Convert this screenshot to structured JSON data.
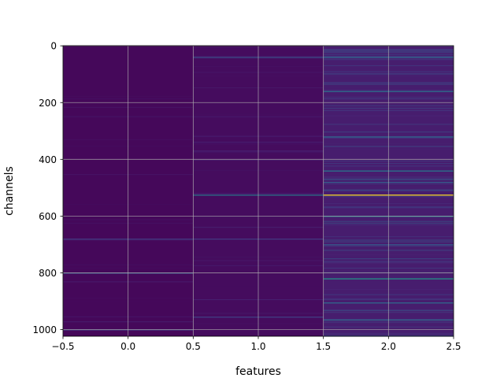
{
  "chart_data": {
    "type": "heatmap",
    "title": "",
    "xlabel": "features",
    "ylabel": "channels",
    "columns": [
      0,
      1,
      2
    ],
    "rows": 1024,
    "xlim": [
      -0.5,
      2.5
    ],
    "ylim": [
      1023.5,
      -0.5
    ],
    "y_inverted": true,
    "grid": true,
    "colormap": "viridis",
    "colormap_stops": [
      "#440154",
      "#482878",
      "#3e4989",
      "#31688e",
      "#26828e",
      "#1f9e89",
      "#35b779",
      "#6ece58",
      "#b5de2b",
      "#fde725"
    ],
    "x_ticks": [
      -0.5,
      0.0,
      0.5,
      1.0,
      1.5,
      2.0,
      2.5
    ],
    "x_tick_labels": [
      "−0.5",
      "0.0",
      "0.5",
      "1.0",
      "1.5",
      "2.0",
      "2.5"
    ],
    "y_ticks": [
      0,
      200,
      400,
      600,
      800,
      1000
    ],
    "y_tick_labels": [
      "0",
      "200",
      "400",
      "600",
      "800",
      "1000"
    ],
    "base_intensity": [
      0.02,
      0.03,
      0.08
    ],
    "highlights": [
      {
        "column": 0,
        "row": 800,
        "value": 0.28
      },
      {
        "column": 0,
        "row": 680,
        "value": 0.18
      },
      {
        "column": 0,
        "row": 1000,
        "value": 0.2
      },
      {
        "column": 1,
        "row": 40,
        "value": 0.25
      },
      {
        "column": 1,
        "row": 525,
        "value": 0.42
      },
      {
        "column": 1,
        "row": 680,
        "value": 0.18
      },
      {
        "column": 1,
        "row": 955,
        "value": 0.2
      },
      {
        "column": 2,
        "row": 40,
        "value": 0.35
      },
      {
        "column": 2,
        "row": 160,
        "value": 0.38
      },
      {
        "column": 2,
        "row": 320,
        "value": 0.35
      },
      {
        "column": 2,
        "row": 440,
        "value": 0.42
      },
      {
        "column": 2,
        "row": 480,
        "value": 0.3
      },
      {
        "column": 2,
        "row": 525,
        "value": 1.0
      },
      {
        "column": 2,
        "row": 600,
        "value": 0.45
      },
      {
        "column": 2,
        "row": 700,
        "value": 0.3
      },
      {
        "column": 2,
        "row": 820,
        "value": 0.55
      },
      {
        "column": 2,
        "row": 905,
        "value": 0.35
      },
      {
        "column": 2,
        "row": 965,
        "value": 0.35
      }
    ]
  }
}
